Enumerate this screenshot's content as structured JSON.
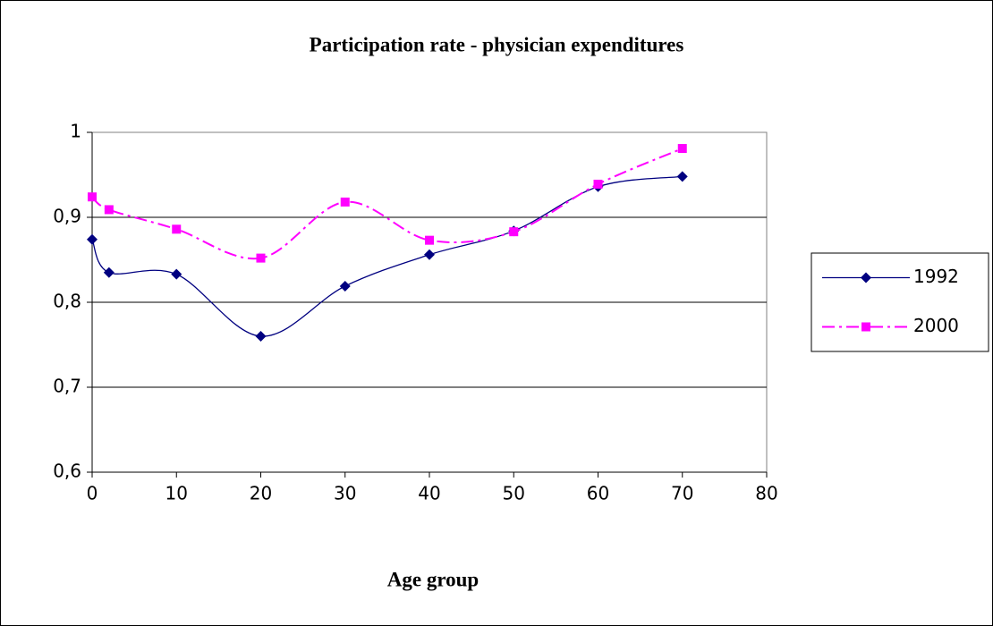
{
  "chart_data": {
    "type": "line",
    "title": "Participation rate - physician expenditures",
    "x_label": "Age group",
    "x": [
      0,
      2,
      10,
      20,
      30,
      40,
      50,
      60,
      70
    ],
    "series": [
      {
        "name": "1992",
        "color": "#000080",
        "marker": "diamond",
        "line_style": "solid",
        "values": [
          0.874,
          0.835,
          0.833,
          0.76,
          0.819,
          0.856,
          0.884,
          0.936,
          0.948
        ]
      },
      {
        "name": "2000",
        "color": "#ff00ff",
        "marker": "square",
        "line_style": "dashdot",
        "values": [
          0.924,
          0.909,
          0.886,
          0.852,
          0.918,
          0.873,
          0.883,
          0.939,
          0.981
        ]
      }
    ],
    "xlim": [
      0,
      80
    ],
    "xticks": [
      0,
      10,
      20,
      30,
      40,
      50,
      60,
      70,
      80
    ],
    "ylim": [
      0.6,
      1
    ],
    "yticks": [
      {
        "value": 0.6,
        "label": "0,6"
      },
      {
        "value": 0.7,
        "label": "0,7"
      },
      {
        "value": 0.8,
        "label": "0,8"
      },
      {
        "value": 0.9,
        "label": "0,9"
      },
      1
    ],
    "grid": true,
    "smooth": true,
    "legend": "right"
  }
}
